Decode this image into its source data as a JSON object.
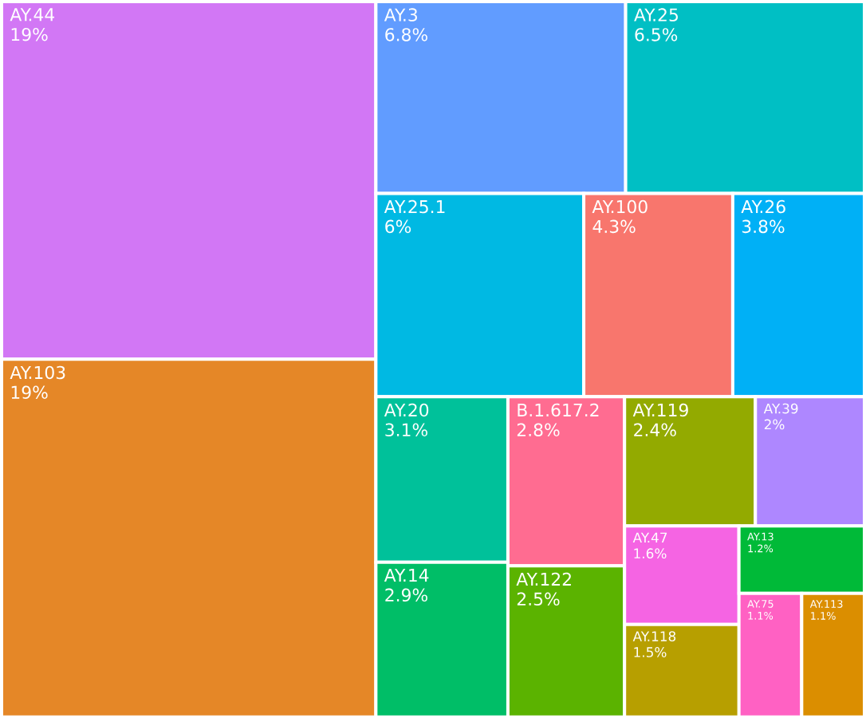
{
  "chart_data": {
    "type": "other",
    "categories": [
      "AY.44",
      "AY.103",
      "AY.3",
      "AY.25",
      "AY.25.1",
      "AY.100",
      "AY.26",
      "AY.20",
      "AY.14",
      "B.1.617.2",
      "AY.122",
      "AY.119",
      "AY.39",
      "AY.47",
      "AY.118",
      "AY.13",
      "AY.75",
      "AY.113"
    ],
    "values": [
      19,
      19,
      6.8,
      6.5,
      6,
      4.3,
      3.8,
      3.1,
      2.9,
      2.8,
      2.5,
      2.4,
      2,
      1.6,
      1.5,
      1.2,
      1.1,
      1.1
    ],
    "value_labels": [
      "19%",
      "19%",
      "6.8%",
      "6.5%",
      "6%",
      "4.3%",
      "3.8%",
      "3.1%",
      "2.9%",
      "2.8%",
      "2.5%",
      "2.4%",
      "2%",
      "1.6%",
      "1.5%",
      "1.2%",
      "1.1%",
      "1.1%"
    ],
    "colors": [
      "#d277f5",
      "#e58727",
      "#619cff",
      "#00bfc4",
      "#00b9e3",
      "#f8766d",
      "#00b0f6",
      "#00c19a",
      "#00be67",
      "#ff6c91",
      "#5bb300",
      "#93aa00",
      "#ae87ff",
      "#f564e3",
      "#b79f00",
      "#00ba38",
      "#ff61c3",
      "#db8e00"
    ]
  }
}
